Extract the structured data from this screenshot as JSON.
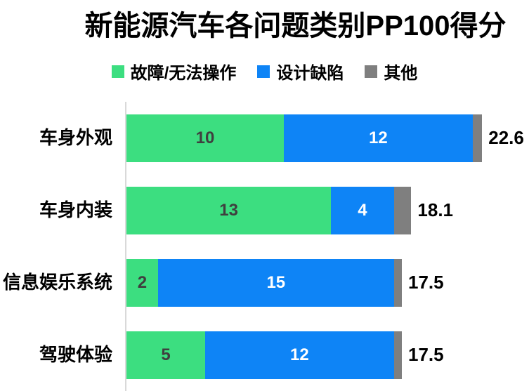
{
  "title": "新能源汽车各问题类别PP100得分",
  "legend": {
    "items": [
      {
        "label": "故障/无法操作",
        "color": "#3cde80"
      },
      {
        "label": "设计缺陷",
        "color": "#0e84f6"
      },
      {
        "label": "其他",
        "color": "#7f7f7f"
      }
    ]
  },
  "chart_data": {
    "type": "bar",
    "orientation": "horizontal",
    "stacked": true,
    "title": "新能源汽车各问题类别PP100得分",
    "categories": [
      "车身外观",
      "车身内装",
      "信息娱乐系统",
      "驾驶体验"
    ],
    "series": [
      {
        "name": "故障/无法操作",
        "color": "#3cde80",
        "values": [
          10,
          13,
          2,
          5
        ],
        "labels": [
          "10",
          "13",
          "2",
          "5"
        ],
        "label_color": "#3f3f3f",
        "show_labels": true
      },
      {
        "name": "设计缺陷",
        "color": "#0e84f6",
        "values": [
          12,
          4,
          15,
          12
        ],
        "labels": [
          "12",
          "4",
          "15",
          "12"
        ],
        "label_color": "#ffffff",
        "show_labels": true
      },
      {
        "name": "其他",
        "color": "#7f7f7f",
        "values": [
          0.6,
          1.1,
          0.5,
          0.5
        ],
        "labels": [
          "",
          "",
          "",
          ""
        ],
        "label_color": "#ffffff",
        "show_labels": false
      }
    ],
    "totals": [
      22.6,
      18.1,
      17.5,
      17.5
    ],
    "total_labels": [
      "22.6",
      "18.1",
      "17.5",
      "17.5"
    ],
    "xlim": [
      0,
      25
    ],
    "grid": false,
    "legend_position": "top",
    "axis_line_color": "#d9d9d9",
    "background": "#ffffff",
    "total_label_color": "#000000",
    "category_label_color": "#000000"
  }
}
